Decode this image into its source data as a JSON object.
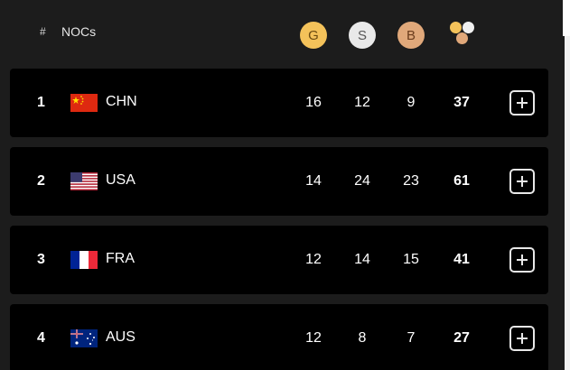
{
  "header": {
    "rank_label": "#",
    "nocs_label": "NOCs",
    "gold_icon_letter": "G",
    "silver_icon_letter": "S",
    "bronze_icon_letter": "B",
    "total_icon": "total-medals-icon"
  },
  "colors": {
    "gold": "#f4c25a",
    "silver": "#e9e9e9",
    "bronze": "#e0a87a",
    "row_background": "#000000",
    "panel_background": "#1c1c1c"
  },
  "rows": [
    {
      "rank": "1",
      "code": "CHN",
      "flag": "china-flag-icon",
      "gold": "16",
      "silver": "12",
      "bronze": "9",
      "total": "37"
    },
    {
      "rank": "2",
      "code": "USA",
      "flag": "usa-flag-icon",
      "gold": "14",
      "silver": "24",
      "bronze": "23",
      "total": "61"
    },
    {
      "rank": "3",
      "code": "FRA",
      "flag": "france-flag-icon",
      "gold": "12",
      "silver": "14",
      "bronze": "15",
      "total": "41"
    },
    {
      "rank": "4",
      "code": "AUS",
      "flag": "australia-flag-icon",
      "gold": "12",
      "silver": "8",
      "bronze": "7",
      "total": "27"
    }
  ]
}
